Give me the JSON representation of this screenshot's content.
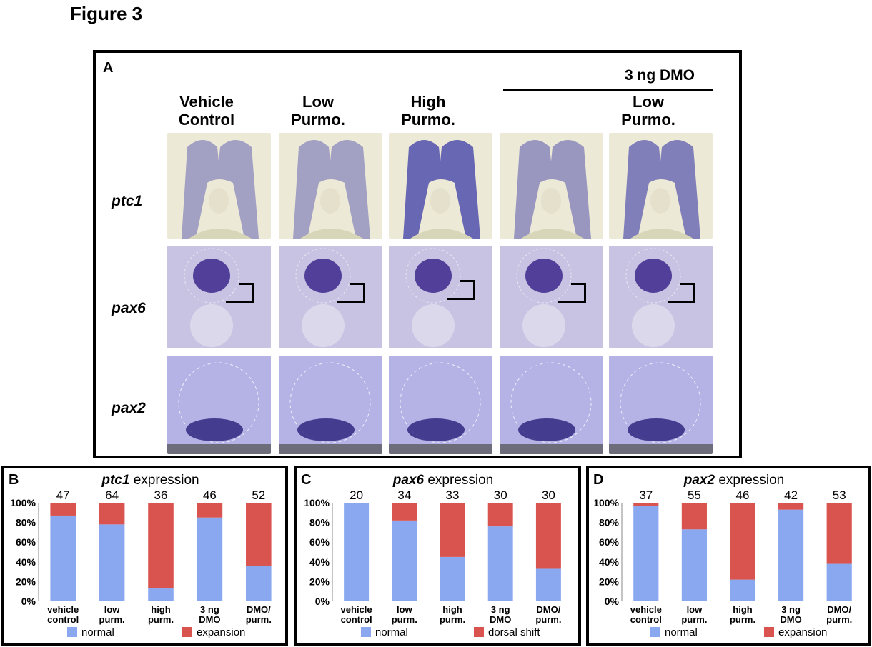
{
  "figure_title": "Figure 3",
  "panelA": {
    "letter": "A",
    "group_label": "3 ng DMO",
    "columns": [
      {
        "line1": "Vehicle",
        "line2": "Control"
      },
      {
        "line1": "Low",
        "line2": "Purmo."
      },
      {
        "line1": "High",
        "line2": "Purmo."
      },
      {
        "line1": "",
        "line2": ""
      },
      {
        "line1": "Low",
        "line2": "Purmo."
      }
    ],
    "rows": [
      "ptc1",
      "pax6",
      "pax2"
    ]
  },
  "chart_data": [
    {
      "type": "bar",
      "panel": "B",
      "title_gene": "ptc1",
      "title_rest": " expression",
      "categories": [
        [
          "vehicle",
          "control"
        ],
        [
          "low",
          "purm."
        ],
        [
          "high",
          "purm."
        ],
        [
          "3 ng",
          "DMO"
        ],
        [
          "DMO/",
          "purm."
        ]
      ],
      "counts": [
        "47",
        "64",
        "36",
        "46",
        "52"
      ],
      "series": [
        {
          "name": "normal",
          "values": [
            87,
            78,
            13,
            85,
            36
          ],
          "color": "#8aa8f0"
        },
        {
          "name": "expansion",
          "values": [
            13,
            22,
            87,
            15,
            64
          ],
          "color": "#d9534f"
        }
      ],
      "ylim": [
        0,
        100
      ],
      "yticks": [
        "0%",
        "20%",
        "40%",
        "60%",
        "80%",
        "100%"
      ]
    },
    {
      "type": "bar",
      "panel": "C",
      "title_gene": "pax6",
      "title_rest": " expression",
      "categories": [
        [
          "vehicle",
          "control"
        ],
        [
          "low",
          "purm."
        ],
        [
          "high",
          "purm."
        ],
        [
          "3 ng",
          "DMO"
        ],
        [
          "DMO/",
          "purm."
        ]
      ],
      "counts": [
        "20",
        "34",
        "33",
        "30",
        "30"
      ],
      "series": [
        {
          "name": "normal",
          "values": [
            100,
            82,
            45,
            76,
            33
          ],
          "color": "#8aa8f0"
        },
        {
          "name": "dorsal shift",
          "values": [
            0,
            18,
            55,
            24,
            67
          ],
          "color": "#d9534f"
        }
      ],
      "ylim": [
        0,
        100
      ],
      "yticks": [
        "0%",
        "20%",
        "40%",
        "60%",
        "80%",
        "100%"
      ]
    },
    {
      "type": "bar",
      "panel": "D",
      "title_gene": "pax2",
      "title_rest": " expression",
      "categories": [
        [
          "vehicle",
          "control"
        ],
        [
          "low",
          "purm."
        ],
        [
          "high",
          "purm."
        ],
        [
          "3 ng",
          "DMO"
        ],
        [
          "DMO/",
          "purm."
        ]
      ],
      "counts": [
        "37",
        "55",
        "46",
        "42",
        "53"
      ],
      "series": [
        {
          "name": "normal",
          "values": [
            97,
            73,
            22,
            93,
            38
          ],
          "color": "#8aa8f0"
        },
        {
          "name": "expansion",
          "values": [
            3,
            27,
            78,
            7,
            62
          ],
          "color": "#d9534f"
        }
      ],
      "ylim": [
        0,
        100
      ],
      "yticks": [
        "0%",
        "20%",
        "40%",
        "60%",
        "80%",
        "100%"
      ]
    }
  ]
}
